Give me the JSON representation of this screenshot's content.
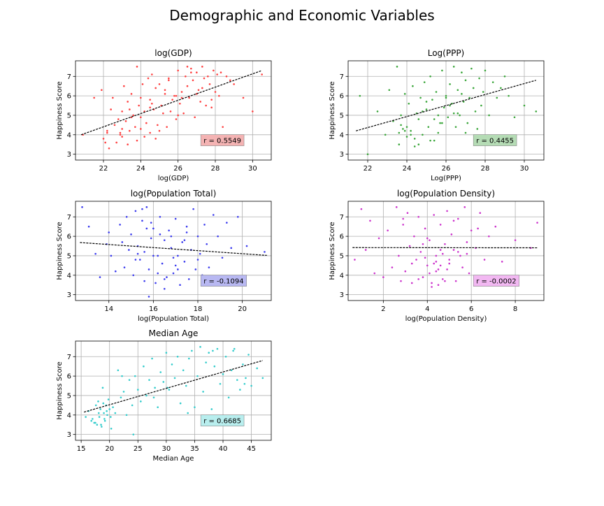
{
  "figure": {
    "title": "Demographic and Economic Variables"
  },
  "chart_data": [
    {
      "type": "scatter",
      "title": "log(GDP)",
      "xlabel": "log(GDP)",
      "ylabel": "Happiness Score",
      "xlim": [
        20.5,
        31.0
      ],
      "ylim": [
        2.7,
        7.8
      ],
      "xticks": [
        22,
        24,
        26,
        28,
        30
      ],
      "yticks": [
        3,
        4,
        5,
        6,
        7
      ],
      "grid": true,
      "color": "#ff4040",
      "box_color": "#f4b3b3",
      "trend": {
        "x": [
          20.8,
          30.5
        ],
        "y": [
          4.0,
          7.3
        ]
      },
      "annotation": "r = 0.5549",
      "points": {
        "x": [
          20.9,
          21.5,
          21.9,
          22.0,
          22.2,
          22.3,
          22.4,
          22.5,
          22.6,
          22.7,
          22.8,
          22.9,
          23.0,
          23.0,
          23.1,
          23.2,
          23.3,
          23.3,
          23.4,
          23.5,
          23.6,
          23.7,
          23.8,
          23.9,
          24.0,
          24.0,
          24.1,
          24.2,
          24.3,
          24.4,
          24.5,
          24.5,
          24.6,
          24.7,
          24.8,
          24.9,
          25.0,
          25.1,
          25.2,
          25.3,
          25.4,
          25.5,
          25.6,
          25.7,
          25.8,
          25.9,
          26.0,
          26.1,
          26.2,
          26.3,
          26.4,
          26.5,
          26.6,
          26.7,
          26.8,
          26.9,
          27.0,
          27.1,
          27.2,
          27.3,
          27.4,
          27.5,
          27.6,
          27.7,
          27.8,
          27.9,
          28.0,
          28.1,
          28.2,
          28.4,
          28.6,
          28.8,
          29.0,
          29.5,
          30.0,
          30.5,
          22.2,
          23.5,
          24.5,
          25.5,
          26.5,
          27.0,
          23.8,
          24.2,
          25.0,
          26.0,
          22.9,
          23.4,
          24.8,
          25.9,
          26.7,
          27.8,
          28.3,
          22.1,
          23.0,
          24.0,
          24.6,
          25.3,
          26.2,
          27.3
        ],
        "y": [
          4.0,
          5.9,
          6.3,
          3.8,
          4.2,
          3.3,
          5.3,
          5.9,
          4.5,
          3.6,
          4.8,
          4.1,
          5.2,
          3.9,
          6.5,
          4.7,
          5.7,
          3.5,
          4.2,
          6.1,
          5.0,
          4.4,
          7.5,
          5.5,
          5.9,
          4.3,
          6.6,
          5.2,
          4.6,
          6.9,
          5.8,
          4.1,
          7.1,
          5.3,
          6.4,
          4.5,
          6.6,
          5.5,
          5.1,
          6.3,
          4.4,
          6.9,
          5.2,
          5.8,
          6.0,
          4.8,
          7.3,
          5.6,
          6.2,
          5.1,
          7.0,
          6.5,
          5.9,
          7.4,
          6.8,
          4.9,
          7.2,
          6.3,
          5.7,
          7.5,
          6.9,
          5.5,
          7.0,
          6.6,
          5.4,
          7.3,
          6.2,
          7.1,
          6.0,
          4.4,
          7.0,
          6.8,
          6.6,
          5.9,
          5.2,
          7.1,
          4.1,
          4.9,
          5.4,
          6.8,
          7.5,
          6.1,
          3.7,
          3.9,
          4.2,
          5.0,
          4.0,
          5.3,
          3.8,
          6.0,
          7.2,
          5.8,
          7.2,
          3.6,
          4.3,
          4.9,
          5.6,
          6.1,
          5.9,
          6.4
        ]
      }
    },
    {
      "type": "scatter",
      "title": "Log(PPP)",
      "xlabel": "Log(PPP)",
      "ylabel": "Happiness Score",
      "xlim": [
        21.0,
        31.0
      ],
      "ylim": [
        2.7,
        7.8
      ],
      "xticks": [
        22,
        24,
        26,
        28,
        30
      ],
      "yticks": [
        3,
        4,
        5,
        6,
        7
      ],
      "grid": true,
      "color": "#3aa63a",
      "box_color": "#b5dcb5",
      "trend": {
        "x": [
          21.4,
          30.6
        ],
        "y": [
          4.2,
          6.8
        ]
      },
      "annotation": "r = 0.4455",
      "points": {
        "x": [
          21.6,
          22.0,
          22.5,
          22.9,
          23.1,
          23.3,
          23.5,
          23.6,
          23.7,
          23.8,
          23.9,
          24.0,
          24.1,
          24.2,
          24.3,
          24.4,
          24.5,
          24.6,
          24.7,
          24.8,
          24.9,
          25.0,
          25.1,
          25.2,
          25.3,
          25.4,
          25.5,
          25.6,
          25.7,
          25.8,
          25.9,
          26.0,
          26.1,
          26.2,
          26.3,
          26.4,
          26.5,
          26.6,
          26.7,
          26.8,
          26.9,
          27.0,
          27.1,
          27.2,
          27.3,
          27.4,
          27.5,
          27.6,
          27.7,
          27.8,
          27.9,
          28.0,
          28.2,
          28.4,
          28.6,
          28.8,
          29.0,
          29.2,
          29.5,
          30.0,
          30.6,
          23.6,
          24.0,
          24.4,
          24.8,
          25.2,
          25.6,
          26.0,
          26.4,
          26.8,
          23.9,
          24.6,
          25.4,
          26.2,
          27.0,
          23.7,
          24.2,
          25.0,
          25.8,
          26.6
        ],
        "y": [
          6.0,
          3.0,
          5.2,
          4.0,
          6.3,
          4.7,
          7.5,
          3.5,
          5.0,
          4.3,
          6.1,
          3.9,
          5.6,
          4.2,
          6.5,
          3.4,
          5.1,
          4.8,
          5.9,
          4.0,
          6.7,
          5.3,
          4.4,
          7.0,
          5.8,
          3.7,
          6.2,
          5.0,
          4.6,
          7.3,
          5.4,
          6.0,
          4.9,
          6.6,
          5.6,
          7.5,
          4.4,
          6.3,
          5.0,
          7.2,
          5.7,
          6.8,
          4.6,
          5.9,
          7.4,
          6.4,
          5.2,
          4.3,
          6.9,
          5.5,
          6.2,
          7.3,
          5.0,
          6.7,
          5.9,
          6.4,
          7.0,
          6.0,
          4.9,
          5.5,
          5.2,
          4.1,
          4.4,
          3.8,
          5.2,
          3.7,
          4.1,
          5.9,
          5.1,
          6.1,
          4.2,
          3.5,
          4.8,
          5.5,
          4.1,
          4.5,
          4.0,
          5.7,
          4.6,
          5.1
        ]
      }
    },
    {
      "type": "scatter",
      "title": "log(Population Total)",
      "xlabel": "log(Population Total)",
      "ylabel": "Happiness Score",
      "xlim": [
        12.5,
        21.3
      ],
      "ylim": [
        2.7,
        7.8
      ],
      "xticks": [
        14,
        16,
        18,
        20
      ],
      "yticks": [
        3,
        4,
        5,
        6,
        7
      ],
      "grid": true,
      "color": "#3a3aee",
      "box_color": "#b8b8f2",
      "trend": {
        "x": [
          12.7,
          21.1
        ],
        "y": [
          5.68,
          5.02
        ]
      },
      "annotation": "r = -0.1094",
      "points": {
        "x": [
          12.8,
          13.1,
          13.4,
          13.6,
          13.9,
          14.0,
          14.1,
          14.3,
          14.5,
          14.6,
          14.7,
          14.8,
          14.9,
          15.0,
          15.1,
          15.2,
          15.3,
          15.4,
          15.5,
          15.6,
          15.7,
          15.8,
          15.9,
          16.0,
          16.1,
          16.2,
          16.3,
          16.4,
          16.5,
          16.6,
          16.7,
          16.8,
          16.9,
          17.0,
          17.1,
          17.2,
          17.3,
          17.4,
          17.5,
          17.6,
          17.7,
          17.8,
          17.9,
          18.0,
          18.1,
          18.2,
          18.3,
          18.4,
          18.5,
          18.7,
          18.9,
          19.1,
          19.3,
          19.5,
          19.8,
          20.2,
          21.0,
          15.3,
          15.6,
          15.9,
          16.2,
          16.5,
          16.8,
          17.1,
          17.4,
          15.5,
          16.0,
          16.5,
          17.0,
          17.5,
          18.0,
          15.8,
          16.3,
          16.9,
          15.2,
          15.7
        ],
        "y": [
          7.5,
          6.5,
          5.1,
          3.9,
          5.6,
          6.2,
          5.0,
          4.2,
          6.6,
          5.7,
          4.4,
          7.0,
          5.3,
          6.1,
          4.0,
          7.3,
          5.5,
          4.8,
          6.8,
          5.2,
          7.5,
          4.3,
          5.9,
          6.4,
          3.6,
          5.0,
          7.0,
          4.6,
          5.8,
          3.9,
          6.3,
          5.4,
          4.1,
          6.9,
          5.0,
          3.5,
          5.7,
          4.7,
          6.5,
          3.8,
          5.3,
          7.4,
          4.3,
          6.0,
          5.1,
          4.0,
          6.6,
          5.6,
          4.4,
          7.1,
          6.0,
          4.9,
          6.7,
          5.4,
          7.0,
          5.5,
          5.2,
          5.1,
          3.7,
          6.7,
          4.1,
          3.3,
          6.0,
          4.3,
          5.8,
          7.4,
          5.0,
          3.8,
          4.5,
          6.2,
          4.8,
          2.9,
          6.1,
          4.9,
          4.8,
          6.4
        ]
      }
    },
    {
      "type": "scatter",
      "title": "log(Population Density)",
      "xlabel": "log(Population Density)",
      "ylabel": "Happiness Score",
      "xlim": [
        0.4,
        9.3
      ],
      "ylim": [
        2.7,
        7.8
      ],
      "xticks": [
        2,
        4,
        6,
        8
      ],
      "yticks": [
        3,
        4,
        5,
        6,
        7
      ],
      "grid": true,
      "color": "#cc33cc",
      "box_color": "#f2b8f2",
      "trend": {
        "x": [
          0.6,
          9.0
        ],
        "y": [
          5.42,
          5.41
        ]
      },
      "annotation": "r = -0.0002",
      "points": {
        "x": [
          0.7,
          1.0,
          1.2,
          1.4,
          1.6,
          1.8,
          2.0,
          2.2,
          2.4,
          2.6,
          2.7,
          2.8,
          2.9,
          3.0,
          3.1,
          3.2,
          3.3,
          3.4,
          3.5,
          3.6,
          3.7,
          3.8,
          3.9,
          4.0,
          4.1,
          4.2,
          4.3,
          4.4,
          4.5,
          4.6,
          4.7,
          4.8,
          4.9,
          5.0,
          5.1,
          5.2,
          5.3,
          5.4,
          5.5,
          5.6,
          5.7,
          5.8,
          5.9,
          6.0,
          6.2,
          6.4,
          6.6,
          6.8,
          7.1,
          7.4,
          8.0,
          8.7,
          9.0,
          4.1,
          4.3,
          4.5,
          4.7,
          4.9,
          3.9,
          4.4,
          4.6,
          4.8,
          5.0,
          3.8,
          4.2,
          4.6,
          5.2,
          3.6,
          4.0,
          4.4,
          5.4,
          2.9,
          3.3,
          5.8,
          6.3
        ],
        "y": [
          4.8,
          7.4,
          5.3,
          6.8,
          4.1,
          5.9,
          3.9,
          6.3,
          4.4,
          7.5,
          5.0,
          3.7,
          6.6,
          4.2,
          7.2,
          5.5,
          3.6,
          6.0,
          4.8,
          7.0,
          5.2,
          3.9,
          6.4,
          4.5,
          5.8,
          3.4,
          7.1,
          5.0,
          4.3,
          6.6,
          3.8,
          5.6,
          7.3,
          4.6,
          6.1,
          5.3,
          3.7,
          6.9,
          5.0,
          4.4,
          7.5,
          5.7,
          4.1,
          6.3,
          5.4,
          7.2,
          4.8,
          6.0,
          6.5,
          4.7,
          5.8,
          5.4,
          6.7,
          4.1,
          4.6,
          3.5,
          5.1,
          4.3,
          4.9,
          4.2,
          5.3,
          3.7,
          4.8,
          5.6,
          3.6,
          4.5,
          6.8,
          3.8,
          5.9,
          4.7,
          5.2,
          6.9,
          4.6,
          5.1,
          6.4
        ]
      }
    },
    {
      "type": "scatter",
      "title": "Median Age",
      "xlabel": "Median Age",
      "ylabel": "Happiness Score",
      "xlim": [
        14.0,
        48.5
      ],
      "ylim": [
        2.7,
        7.8
      ],
      "xticks": [
        15,
        20,
        25,
        30,
        35,
        40,
        45
      ],
      "yticks": [
        3,
        4,
        5,
        6,
        7
      ],
      "grid": true,
      "color": "#33cccc",
      "box_color": "#b8eeee",
      "trend": {
        "x": [
          15.5,
          47.0
        ],
        "y": [
          4.15,
          6.8
        ]
      },
      "annotation": "r = 0.6685",
      "points": {
        "x": [
          15.8,
          16.3,
          16.8,
          17.0,
          17.3,
          17.6,
          17.8,
          18.0,
          18.2,
          18.4,
          18.6,
          18.8,
          19.0,
          19.2,
          19.4,
          19.6,
          19.8,
          20.0,
          20.3,
          20.6,
          21.0,
          21.5,
          22.0,
          22.5,
          23.0,
          23.5,
          24.0,
          24.5,
          25.0,
          25.5,
          26.0,
          26.5,
          27.0,
          27.5,
          28.0,
          28.5,
          29.0,
          29.5,
          30.0,
          30.5,
          31.0,
          31.5,
          32.0,
          32.5,
          33.0,
          33.5,
          34.0,
          34.5,
          35.0,
          35.5,
          36.0,
          36.5,
          37.0,
          37.5,
          38.0,
          38.5,
          39.0,
          39.5,
          40.0,
          40.5,
          41.0,
          41.5,
          42.0,
          42.5,
          43.0,
          43.5,
          44.0,
          44.5,
          45.0,
          46.0,
          47.0,
          18.1,
          18.5,
          19.1,
          19.5,
          20.2,
          17.5,
          18.9,
          22.2,
          24.2,
          27.8,
          30.2,
          33.8,
          38.2,
          41.8,
          43.8
        ],
        "y": [
          3.9,
          4.2,
          3.7,
          3.8,
          3.6,
          4.5,
          3.5,
          4.7,
          3.9,
          4.3,
          3.4,
          5.4,
          4.1,
          3.7,
          4.5,
          4.0,
          4.8,
          4.3,
          3.3,
          4.4,
          4.1,
          6.3,
          4.9,
          5.2,
          4.0,
          5.8,
          4.5,
          6.0,
          5.3,
          4.7,
          6.5,
          5.0,
          5.8,
          6.9,
          5.4,
          4.4,
          6.2,
          5.7,
          7.2,
          5.3,
          6.6,
          5.9,
          7.0,
          4.6,
          6.3,
          5.5,
          6.9,
          7.3,
          4.4,
          6.0,
          7.5,
          5.2,
          6.7,
          7.2,
          4.3,
          6.5,
          7.4,
          5.6,
          6.1,
          7.0,
          4.9,
          6.3,
          7.4,
          5.8,
          5.3,
          6.6,
          5.9,
          7.1,
          5.5,
          6.4,
          5.9,
          4.1,
          3.5,
          3.8,
          4.2,
          3.9,
          3.6,
          4.6,
          6.0,
          3.0,
          4.9,
          5.4,
          4.1,
          7.3,
          7.3,
          5.6
        ]
      }
    }
  ]
}
